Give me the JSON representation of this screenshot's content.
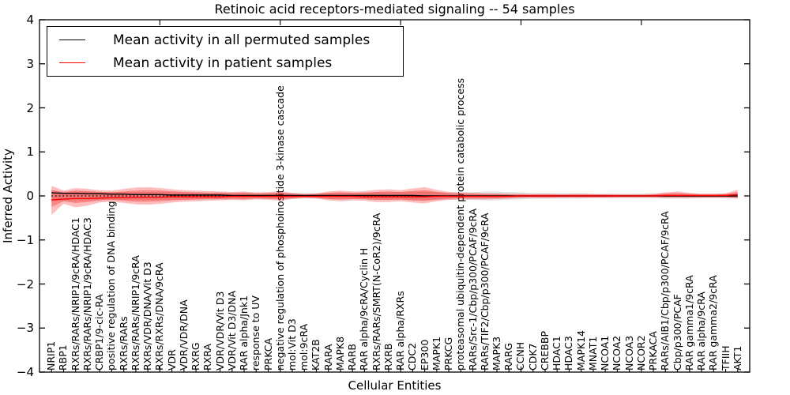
{
  "title": "Retinoic acid receptors-mediated signaling -- 54 samples",
  "axes": {
    "ylabel": "Inferred Activity",
    "xlabel": "Cellular Entities"
  },
  "chart_data": {
    "type": "line",
    "title": "Retinoic acid receptors-mediated signaling -- 54 samples",
    "xlabel": "Cellular Entities",
    "ylabel": "Inferred Activity",
    "ylim": [
      -4,
      4
    ],
    "ytick_values": [
      4,
      3,
      2,
      1,
      0,
      -1,
      -2,
      -3,
      -4
    ],
    "grid": false,
    "legend_position": "upper left",
    "categories": [
      "NRIP1",
      "RBP1",
      "RXRs/RARs/NRIP1/9cRA/HDAC1",
      "RXRs/RARs/NRIP1/9cRA/HDAC3",
      "CRBP1/9-cic-RA",
      "positive regulation of DNA binding",
      "RXRs/RARs",
      "RXRs/RARs/NRIP1/9cRA",
      "RXRs/VDR/DNA/Vit D3",
      "RXRs/RXRs/DNA/9cRA",
      "VDR",
      "VDR/VDR/DNA",
      "RXRG",
      "RXRA",
      "VDR/VDR/Vit D3",
      "VDR/Vit D3/DNA",
      "RAR alpha/Jnk1",
      "response to UV",
      "PRKCA",
      "negative regulation of phosphoinositide 3-kinase cascade",
      "mol:Vit D3",
      "mol:9cRA",
      "KAT2B",
      "RARA",
      "MAPK8",
      "RARB",
      "RAR alpha/9cRA/Cyclin H",
      "RXRs/RARs/SMRT(N-CoR2)/9cRA",
      "RXRB",
      "RAR alpha/RXRs",
      "CDC2",
      "EP300",
      "MAPK1",
      "PRKCG",
      "proteasomal ubiquitin-dependent protein catabolic process",
      "RARs/Src-1/Cbp/p300/PCAF/9cRA",
      "RARs/TIF2/Cbp/p300/PCAF/9cRA",
      "MAPK3",
      "RARG",
      "CCNH",
      "CDK7",
      "CREBBP",
      "HDAC1",
      "HDAC3",
      "MAPK14",
      "MNAT1",
      "NCOA1",
      "NCOA2",
      "NCOA3",
      "NCOR2",
      "PRKACA",
      "RARs/AIB1/Cbp/p300/PCAF/9cRA",
      "Cbp/p300/PCAF",
      "RAR gamma1/9cRA",
      "RAR alpha/9cRA",
      "RAR gamma2/9cRA",
      "TFIIH",
      "AKT1"
    ],
    "series": [
      {
        "name": "Mean activity in all permuted samples",
        "color": "#000000",
        "values": [
          0.07,
          0.06,
          0.06,
          0.05,
          0.05,
          0.04,
          0.04,
          0.03,
          0.03,
          0.03,
          0.02,
          0.02,
          0.02,
          0.02,
          0.02,
          0.01,
          0.01,
          0.01,
          0.01,
          0.01,
          0.01,
          0.01,
          0.01,
          0.01,
          0.01,
          0.01,
          0.01,
          0.01,
          0.01,
          0.01,
          0.01,
          0.0,
          0.0,
          0.0,
          0.0,
          0.0,
          0.0,
          0.0,
          0.0,
          0.0,
          0.0,
          0.0,
          0.0,
          0.0,
          0.0,
          0.0,
          0.0,
          0.0,
          0.0,
          0.0,
          0.0,
          0.0,
          0.0,
          0.0,
          0.0,
          0.0,
          0.0,
          0.0
        ]
      },
      {
        "name": "Mean activity in patient samples",
        "color": "#ff0000",
        "values": [
          -0.09,
          -0.07,
          -0.06,
          -0.06,
          -0.05,
          -0.04,
          -0.04,
          -0.03,
          -0.03,
          -0.03,
          -0.02,
          -0.02,
          -0.02,
          -0.02,
          -0.02,
          -0.01,
          -0.01,
          -0.01,
          -0.01,
          -0.01,
          -0.01,
          -0.01,
          -0.01,
          -0.01,
          -0.01,
          -0.01,
          -0.02,
          -0.02,
          -0.02,
          -0.02,
          -0.02,
          -0.02,
          -0.01,
          -0.01,
          -0.01,
          -0.01,
          -0.01,
          -0.01,
          -0.01,
          0.0,
          0.0,
          0.0,
          0.0,
          0.0,
          0.0,
          0.0,
          0.0,
          0.0,
          0.0,
          0.0,
          0.0,
          0.01,
          0.01,
          0.01,
          0.01,
          0.01,
          0.01,
          0.03
        ]
      }
    ],
    "zero_line": {
      "y": 0,
      "style": "dotted",
      "color": "#000000"
    },
    "bands": [
      {
        "name": "permuted-samples-spread",
        "color": "#000000",
        "opacity": 0.11,
        "hi": [
          0.12,
          0.1,
          0.1,
          0.1,
          0.09,
          0.09,
          0.09,
          0.09,
          0.09,
          0.09,
          0.08,
          0.08,
          0.08,
          0.08,
          0.08,
          0.08,
          0.08,
          0.07,
          0.07,
          0.07,
          0.07,
          0.06,
          0.06,
          0.07,
          0.07,
          0.07,
          0.08,
          0.09,
          0.09,
          0.09,
          0.1,
          0.1,
          0.09,
          0.08,
          0.08,
          0.09,
          0.1,
          0.1,
          0.09,
          0.08,
          0.07,
          0.06,
          0.06,
          0.06,
          0.06,
          0.05,
          0.05,
          0.05,
          0.05,
          0.05,
          0.05,
          0.06,
          0.06,
          0.06,
          0.05,
          0.05,
          0.05,
          0.05
        ],
        "lo": [
          -0.12,
          -0.1,
          -0.1,
          -0.1,
          -0.09,
          -0.09,
          -0.09,
          -0.09,
          -0.09,
          -0.09,
          -0.08,
          -0.08,
          -0.08,
          -0.08,
          -0.08,
          -0.08,
          -0.08,
          -0.07,
          -0.07,
          -0.07,
          -0.07,
          -0.06,
          -0.06,
          -0.07,
          -0.07,
          -0.07,
          -0.08,
          -0.09,
          -0.09,
          -0.09,
          -0.1,
          -0.1,
          -0.09,
          -0.08,
          -0.08,
          -0.09,
          -0.1,
          -0.1,
          -0.09,
          -0.08,
          -0.07,
          -0.06,
          -0.06,
          -0.06,
          -0.06,
          -0.05,
          -0.05,
          -0.05,
          -0.05,
          -0.05,
          -0.05,
          -0.06,
          -0.06,
          -0.06,
          -0.05,
          -0.05,
          -0.05,
          -0.05
        ]
      },
      {
        "name": "patient-samples-spread-outer",
        "color": "#ff0000",
        "opacity": 0.26,
        "hi": [
          0.23,
          0.12,
          0.18,
          0.16,
          0.13,
          0.12,
          0.16,
          0.19,
          0.2,
          0.18,
          0.15,
          0.13,
          0.12,
          0.11,
          0.1,
          0.09,
          0.1,
          0.08,
          0.09,
          0.11,
          0.07,
          0.05,
          0.06,
          0.1,
          0.12,
          0.1,
          0.11,
          0.14,
          0.15,
          0.13,
          0.17,
          0.2,
          0.14,
          0.09,
          0.08,
          0.07,
          0.06,
          0.06,
          0.05,
          0.05,
          0.04,
          0.05,
          0.04,
          0.04,
          0.05,
          0.04,
          0.04,
          0.04,
          0.04,
          0.04,
          0.05,
          0.08,
          0.1,
          0.07,
          0.05,
          0.05,
          0.06,
          0.14
        ],
        "lo": [
          -0.43,
          -0.18,
          -0.26,
          -0.22,
          -0.15,
          -0.13,
          -0.16,
          -0.19,
          -0.2,
          -0.18,
          -0.15,
          -0.13,
          -0.12,
          -0.11,
          -0.1,
          -0.09,
          -0.1,
          -0.08,
          -0.09,
          -0.11,
          -0.07,
          -0.05,
          -0.06,
          -0.1,
          -0.12,
          -0.1,
          -0.11,
          -0.14,
          -0.14,
          -0.12,
          -0.15,
          -0.17,
          -0.12,
          -0.09,
          -0.08,
          -0.08,
          -0.08,
          -0.07,
          -0.06,
          -0.05,
          -0.04,
          -0.05,
          -0.04,
          -0.04,
          -0.04,
          -0.04,
          -0.04,
          -0.04,
          -0.04,
          -0.04,
          -0.04,
          -0.04,
          -0.04,
          -0.04,
          -0.04,
          -0.04,
          -0.04,
          -0.06
        ]
      },
      {
        "name": "patient-samples-spread-inner",
        "color": "#ff0000",
        "opacity": 0.3,
        "hi": [
          0.14,
          0.08,
          0.12,
          0.11,
          0.09,
          0.08,
          0.1,
          0.12,
          0.13,
          0.12,
          0.1,
          0.09,
          0.08,
          0.07,
          0.07,
          0.06,
          0.07,
          0.05,
          0.06,
          0.07,
          0.05,
          0.03,
          0.04,
          0.07,
          0.08,
          0.07,
          0.07,
          0.09,
          0.1,
          0.09,
          0.11,
          0.13,
          0.09,
          0.06,
          0.05,
          0.05,
          0.04,
          0.04,
          0.03,
          0.03,
          0.03,
          0.03,
          0.03,
          0.03,
          0.03,
          0.03,
          0.03,
          0.02,
          0.02,
          0.02,
          0.03,
          0.05,
          0.06,
          0.04,
          0.03,
          0.03,
          0.04,
          0.09
        ],
        "lo": [
          -0.25,
          -0.12,
          -0.16,
          -0.14,
          -0.1,
          -0.09,
          -0.11,
          -0.13,
          -0.13,
          -0.12,
          -0.1,
          -0.09,
          -0.08,
          -0.07,
          -0.07,
          -0.06,
          -0.07,
          -0.05,
          -0.06,
          -0.07,
          -0.05,
          -0.03,
          -0.04,
          -0.07,
          -0.08,
          -0.07,
          -0.07,
          -0.09,
          -0.09,
          -0.08,
          -0.1,
          -0.11,
          -0.08,
          -0.06,
          -0.05,
          -0.05,
          -0.05,
          -0.05,
          -0.04,
          -0.03,
          -0.03,
          -0.03,
          -0.03,
          -0.03,
          -0.03,
          -0.03,
          -0.03,
          -0.02,
          -0.02,
          -0.02,
          -0.02,
          -0.03,
          -0.03,
          -0.03,
          -0.03,
          -0.03,
          -0.03,
          -0.04
        ]
      }
    ]
  }
}
